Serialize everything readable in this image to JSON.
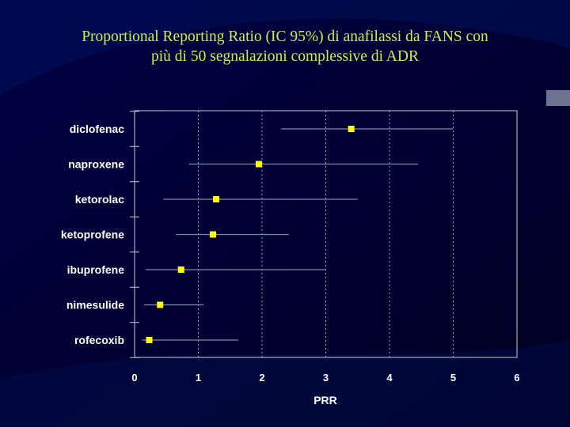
{
  "slide": {
    "title_line1": "Proportional Reporting Ratio (IC 95%) di anafilassi da FANS con",
    "title_line2": "più di 50 segnalazioni complessive di ADR"
  },
  "colors": {
    "background": "#000033",
    "title": "#c8f050",
    "text": "#ffffff",
    "marker": "#ffff00",
    "ci_line": "#7f8aa6",
    "grid": "#9aa3b8"
  },
  "chart_data": {
    "type": "scatter",
    "subtype": "forest-plot",
    "xlabel": "PRR",
    "xlim": [
      0,
      6
    ],
    "xticks": [
      0,
      1,
      2,
      3,
      4,
      5,
      6
    ],
    "grid": "vertical dotted",
    "categories": [
      "diclofenac",
      "naproxene",
      "ketorolac",
      "ketoprofene",
      "ibuprofene",
      "nimesulide",
      "rofecoxib"
    ],
    "series": [
      {
        "points": [
          {
            "drug": "diclofenac",
            "prr": 3.4,
            "ci_low": 2.3,
            "ci_high": 5.0
          },
          {
            "drug": "naproxene",
            "prr": 1.95,
            "ci_low": 0.85,
            "ci_high": 4.45
          },
          {
            "drug": "ketorolac",
            "prr": 1.28,
            "ci_low": 0.45,
            "ci_high": 3.5
          },
          {
            "drug": "ketoprofene",
            "prr": 1.23,
            "ci_low": 0.65,
            "ci_high": 2.42
          },
          {
            "drug": "ibuprofene",
            "prr": 0.73,
            "ci_low": 0.17,
            "ci_high": 3.0
          },
          {
            "drug": "nimesulide",
            "prr": 0.4,
            "ci_low": 0.15,
            "ci_high": 1.08
          },
          {
            "drug": "rofecoxib",
            "prr": 0.23,
            "ci_low": 0.12,
            "ci_high": 1.63
          }
        ]
      }
    ]
  }
}
